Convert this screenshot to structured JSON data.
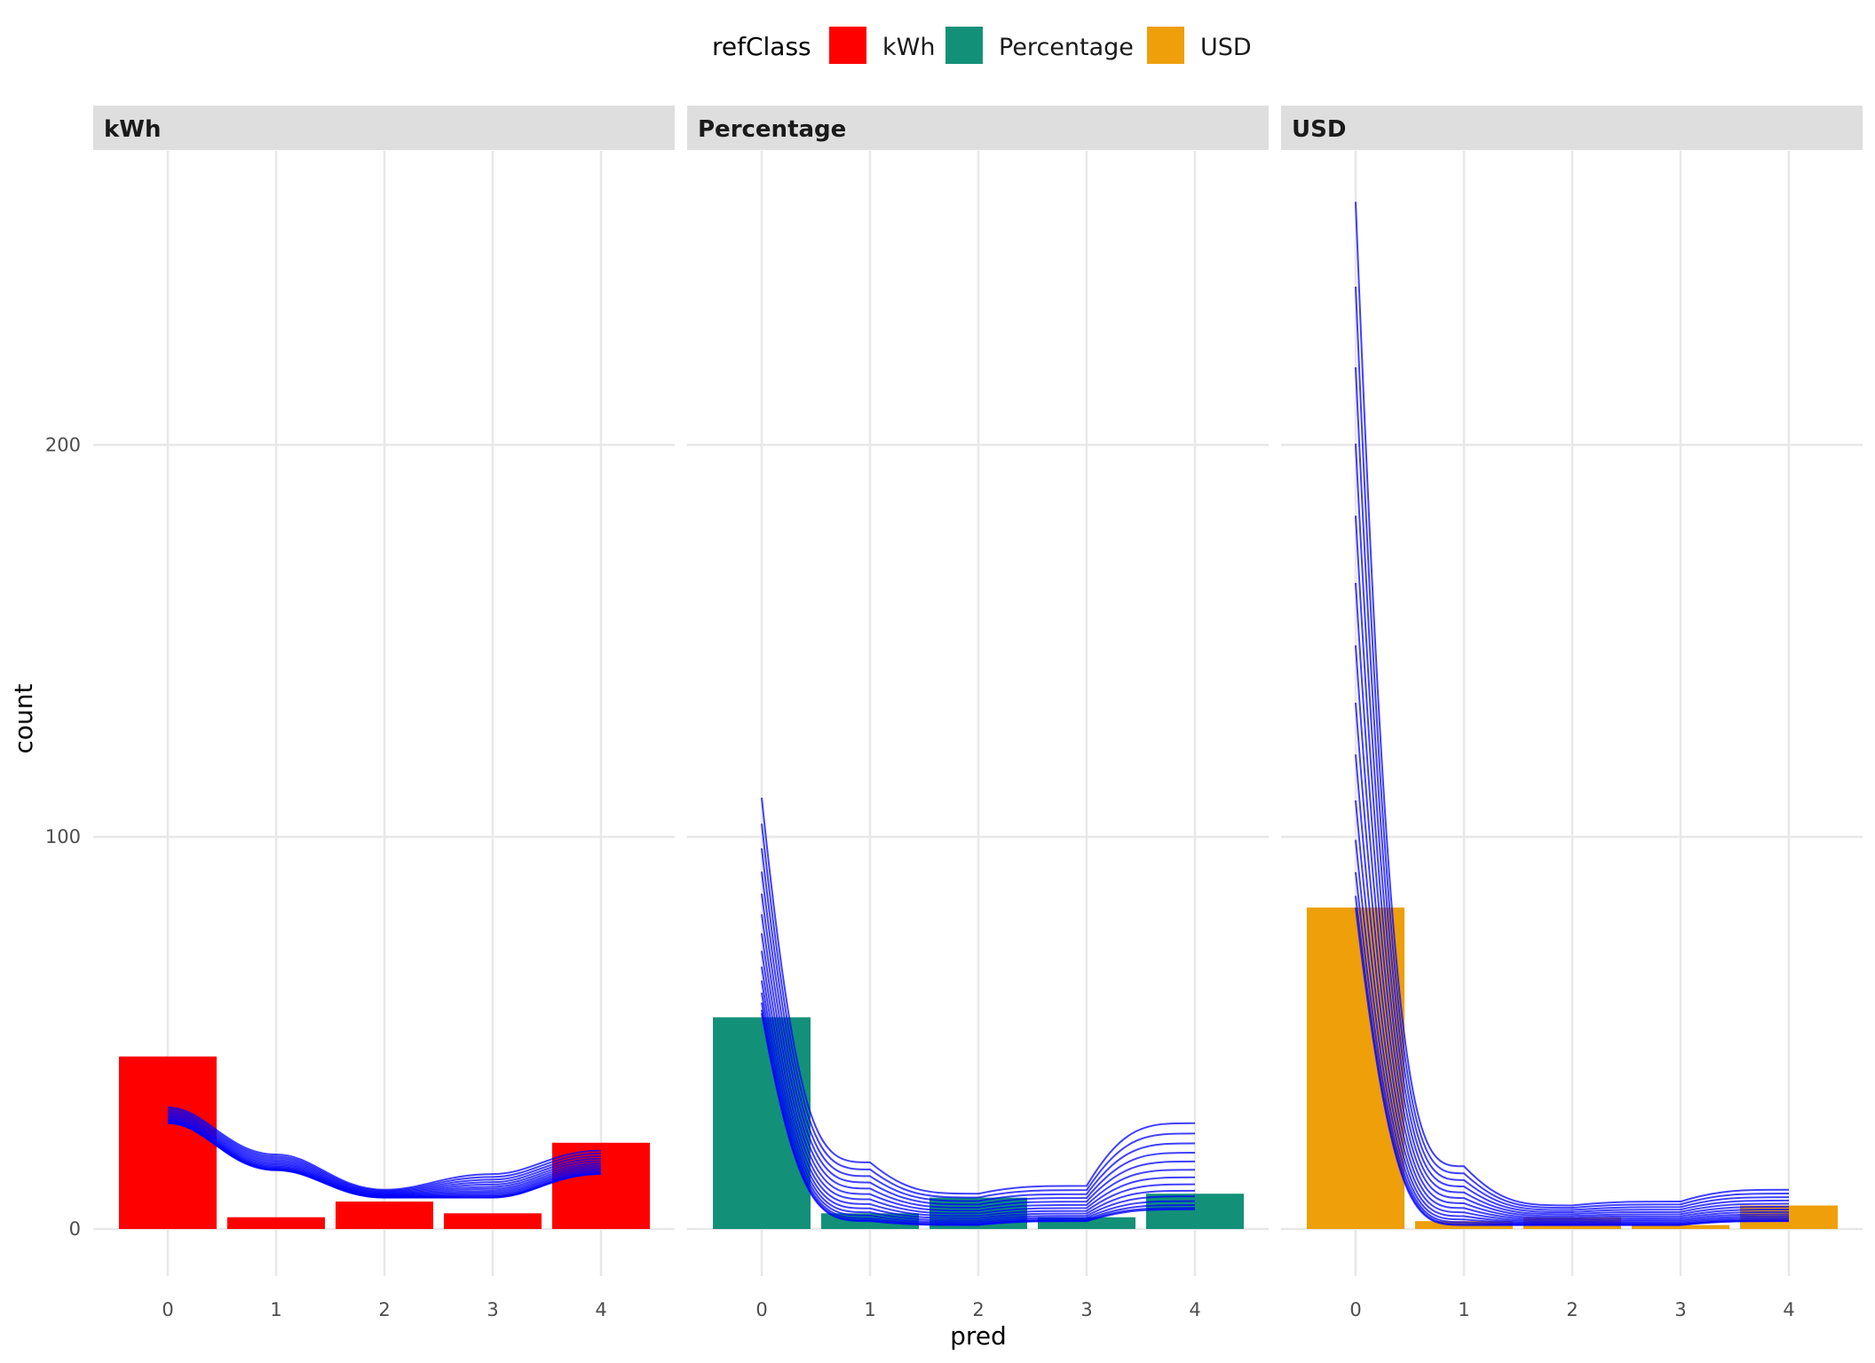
{
  "chart_data": {
    "type": "bar",
    "facet_by": "refClass",
    "xlabel": "pred",
    "ylabel": "count",
    "x_ticks": [
      "0",
      "1",
      "2",
      "3",
      "4"
    ],
    "y_ticks": [
      "0",
      "100",
      "200"
    ],
    "ylim": [
      -12,
      275
    ],
    "grid": true,
    "legend": {
      "title": "refClass",
      "position": "top",
      "entries": [
        {
          "label": "kWh",
          "color": "#ff0000"
        },
        {
          "label": "Percentage",
          "color": "#139178"
        },
        {
          "label": "USD",
          "color": "#ee9f0a"
        }
      ]
    },
    "overlay_line_color": "#0000ff",
    "panels": [
      {
        "strip": "kWh",
        "fill": "#ff0000",
        "categories": [
          0,
          1,
          2,
          3,
          4
        ],
        "values": [
          44,
          3,
          7,
          4,
          22
        ],
        "overlay_curves": {
          "low": [
            27,
            15,
            8,
            8,
            14
          ],
          "high": [
            31,
            19,
            10,
            14,
            20
          ]
        }
      },
      {
        "strip": "Percentage",
        "fill": "#139178",
        "categories": [
          0,
          1,
          2,
          3,
          4
        ],
        "values": [
          54,
          4,
          8,
          3,
          9
        ],
        "overlay_curves": {
          "low": [
            55,
            2,
            1,
            2,
            5
          ],
          "high": [
            110,
            17,
            9,
            11,
            27
          ]
        }
      },
      {
        "strip": "USD",
        "fill": "#ee9f0a",
        "categories": [
          0,
          1,
          2,
          3,
          4
        ],
        "values": [
          82,
          2,
          3,
          1,
          6
        ],
        "overlay_curves": {
          "low": [
            82,
            1,
            1,
            1,
            2
          ],
          "high": [
            262,
            16,
            6,
            7,
            10
          ]
        }
      }
    ]
  }
}
